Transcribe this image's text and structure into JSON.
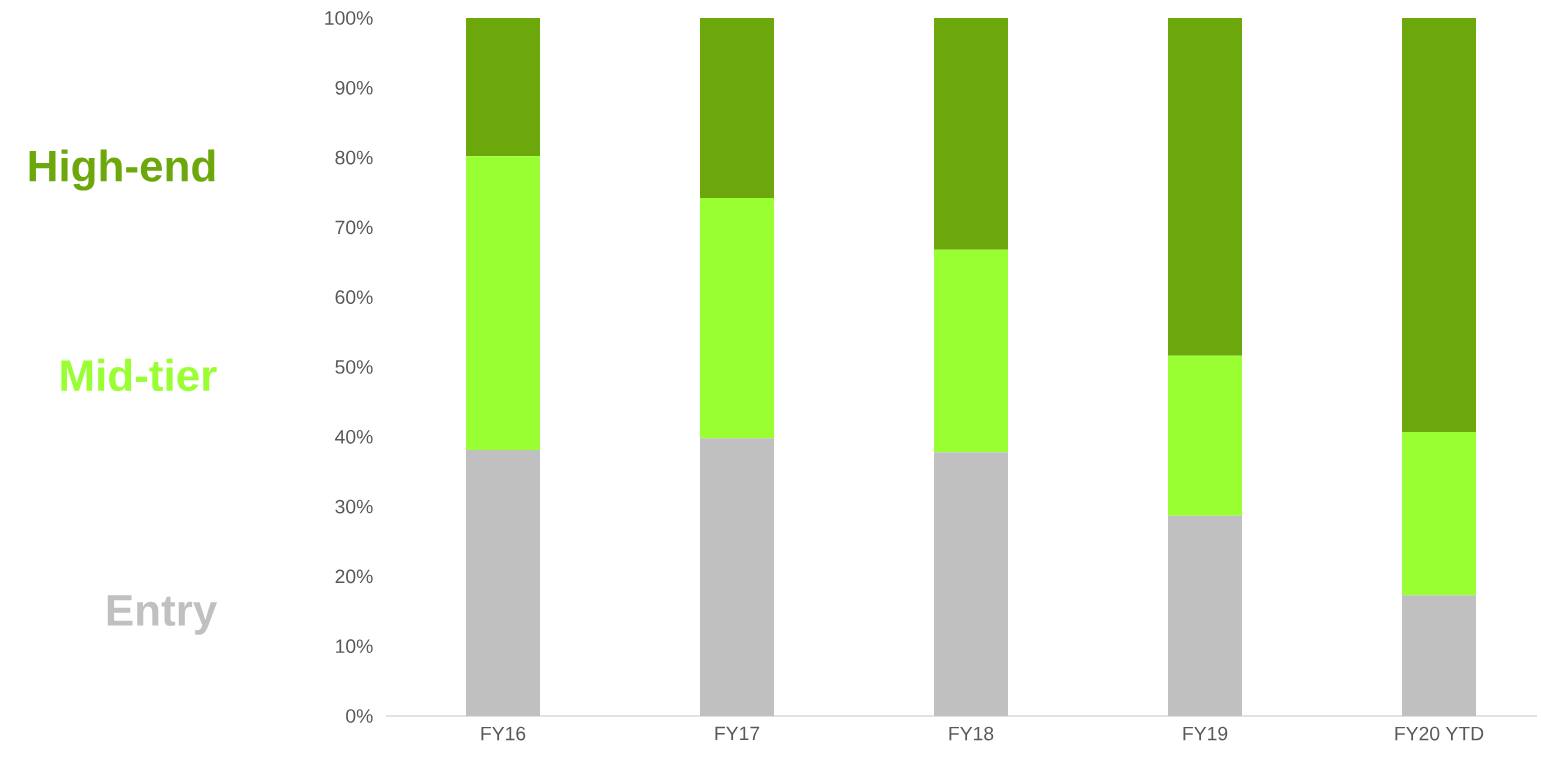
{
  "chart_data": {
    "type": "bar",
    "stacked": true,
    "categories": [
      "FY16",
      "FY17",
      "FY18",
      "FY19",
      "FY20 YTD"
    ],
    "series": [
      {
        "name": "Entry",
        "color": "#c0c0c0",
        "values": [
          38.1,
          39.8,
          37.8,
          28.7,
          17.3
        ]
      },
      {
        "name": "Mid-tier",
        "color": "#99ff33",
        "values": [
          42.1,
          34.4,
          29.0,
          22.9,
          23.4
        ]
      },
      {
        "name": "High-end",
        "color": "#6ca70b",
        "values": [
          19.8,
          25.8,
          33.2,
          48.4,
          59.3
        ]
      }
    ],
    "ylim": [
      0,
      100
    ],
    "yticks": [
      {
        "value": 0,
        "label": "0%"
      },
      {
        "value": 10,
        "label": "10%"
      },
      {
        "value": 20,
        "label": "20%"
      },
      {
        "value": 30,
        "label": "30%"
      },
      {
        "value": 40,
        "label": "40%"
      },
      {
        "value": 50,
        "label": "50%"
      },
      {
        "value": 60,
        "label": "60%"
      },
      {
        "value": 70,
        "label": "70%"
      },
      {
        "value": 80,
        "label": "80%"
      },
      {
        "value": 90,
        "label": "90%"
      },
      {
        "value": 100,
        "label": "100%"
      }
    ],
    "legend": "left",
    "grid": false
  }
}
